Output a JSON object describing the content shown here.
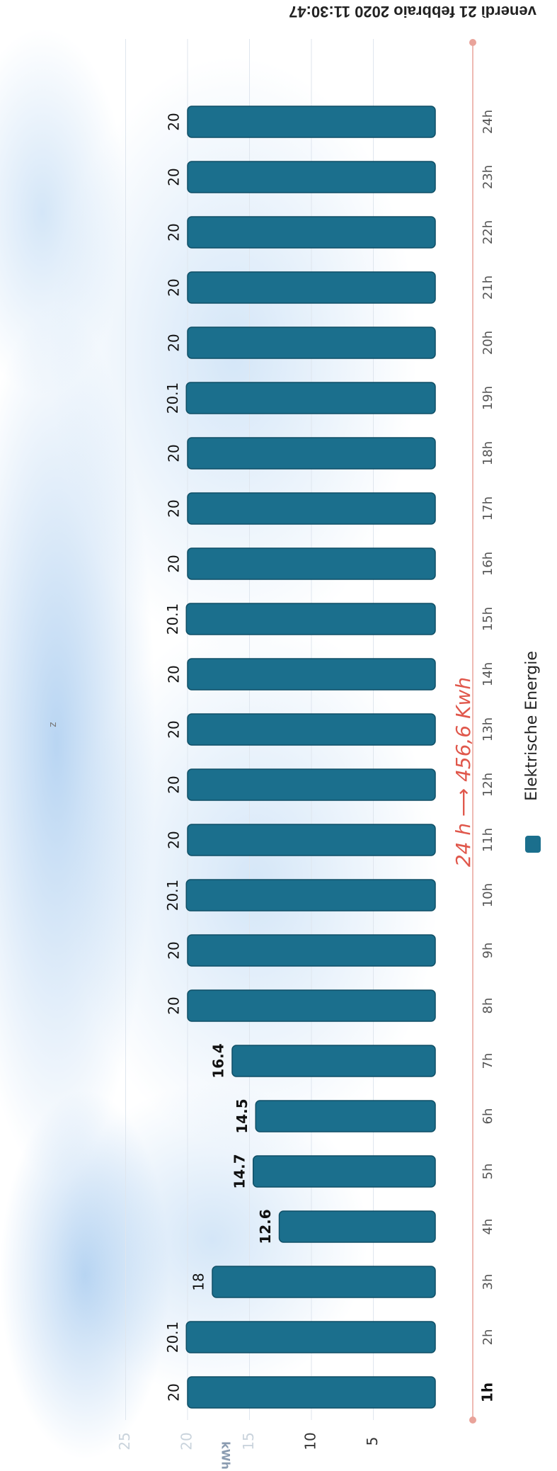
{
  "header": {
    "timestamp": "venerdì 21 febbraio 2020 11:30:47"
  },
  "annotation": {
    "text": "24 h ⟶ 456,6 Kwh"
  },
  "stray_marks": {
    "top_mark": "z"
  },
  "chart_data": {
    "type": "bar",
    "orientation": "horizontal",
    "categories": [
      "1h",
      "2h",
      "3h",
      "4h",
      "5h",
      "6h",
      "7h",
      "8h",
      "9h",
      "10h",
      "11h",
      "12h",
      "13h",
      "14h",
      "15h",
      "16h",
      "17h",
      "18h",
      "19h",
      "20h",
      "21h",
      "22h",
      "23h",
      "24h"
    ],
    "series": [
      {
        "name": "Elektrische Energie",
        "values": [
          20,
          20.1,
          18,
          12.6,
          14.7,
          14.5,
          16.4,
          20,
          20,
          20.1,
          20,
          20,
          20,
          20,
          20.1,
          20,
          20,
          20,
          20.1,
          20,
          20,
          20,
          20,
          20
        ],
        "value_labels": [
          "20",
          "20.1",
          "18",
          "12.6",
          "14.7",
          "14.5",
          "16.4",
          "20",
          "20",
          "20.1",
          "20",
          "20",
          "20",
          "20",
          "20.1",
          "20",
          "20",
          "20",
          "20.1",
          "20",
          "20",
          "20",
          "20",
          "20"
        ]
      }
    ],
    "ylabel": "kWh",
    "value_axis_ticks": [
      "5",
      "10",
      "15",
      "20",
      "25"
    ],
    "value_axis_range": [
      0,
      25
    ],
    "grid": true,
    "legend_position": "bottom",
    "colors": {
      "bar": "#1b6f8d",
      "bar_edge": "#0f4f66",
      "annotation": "#e0574b",
      "axis": "#e9a39a"
    }
  }
}
